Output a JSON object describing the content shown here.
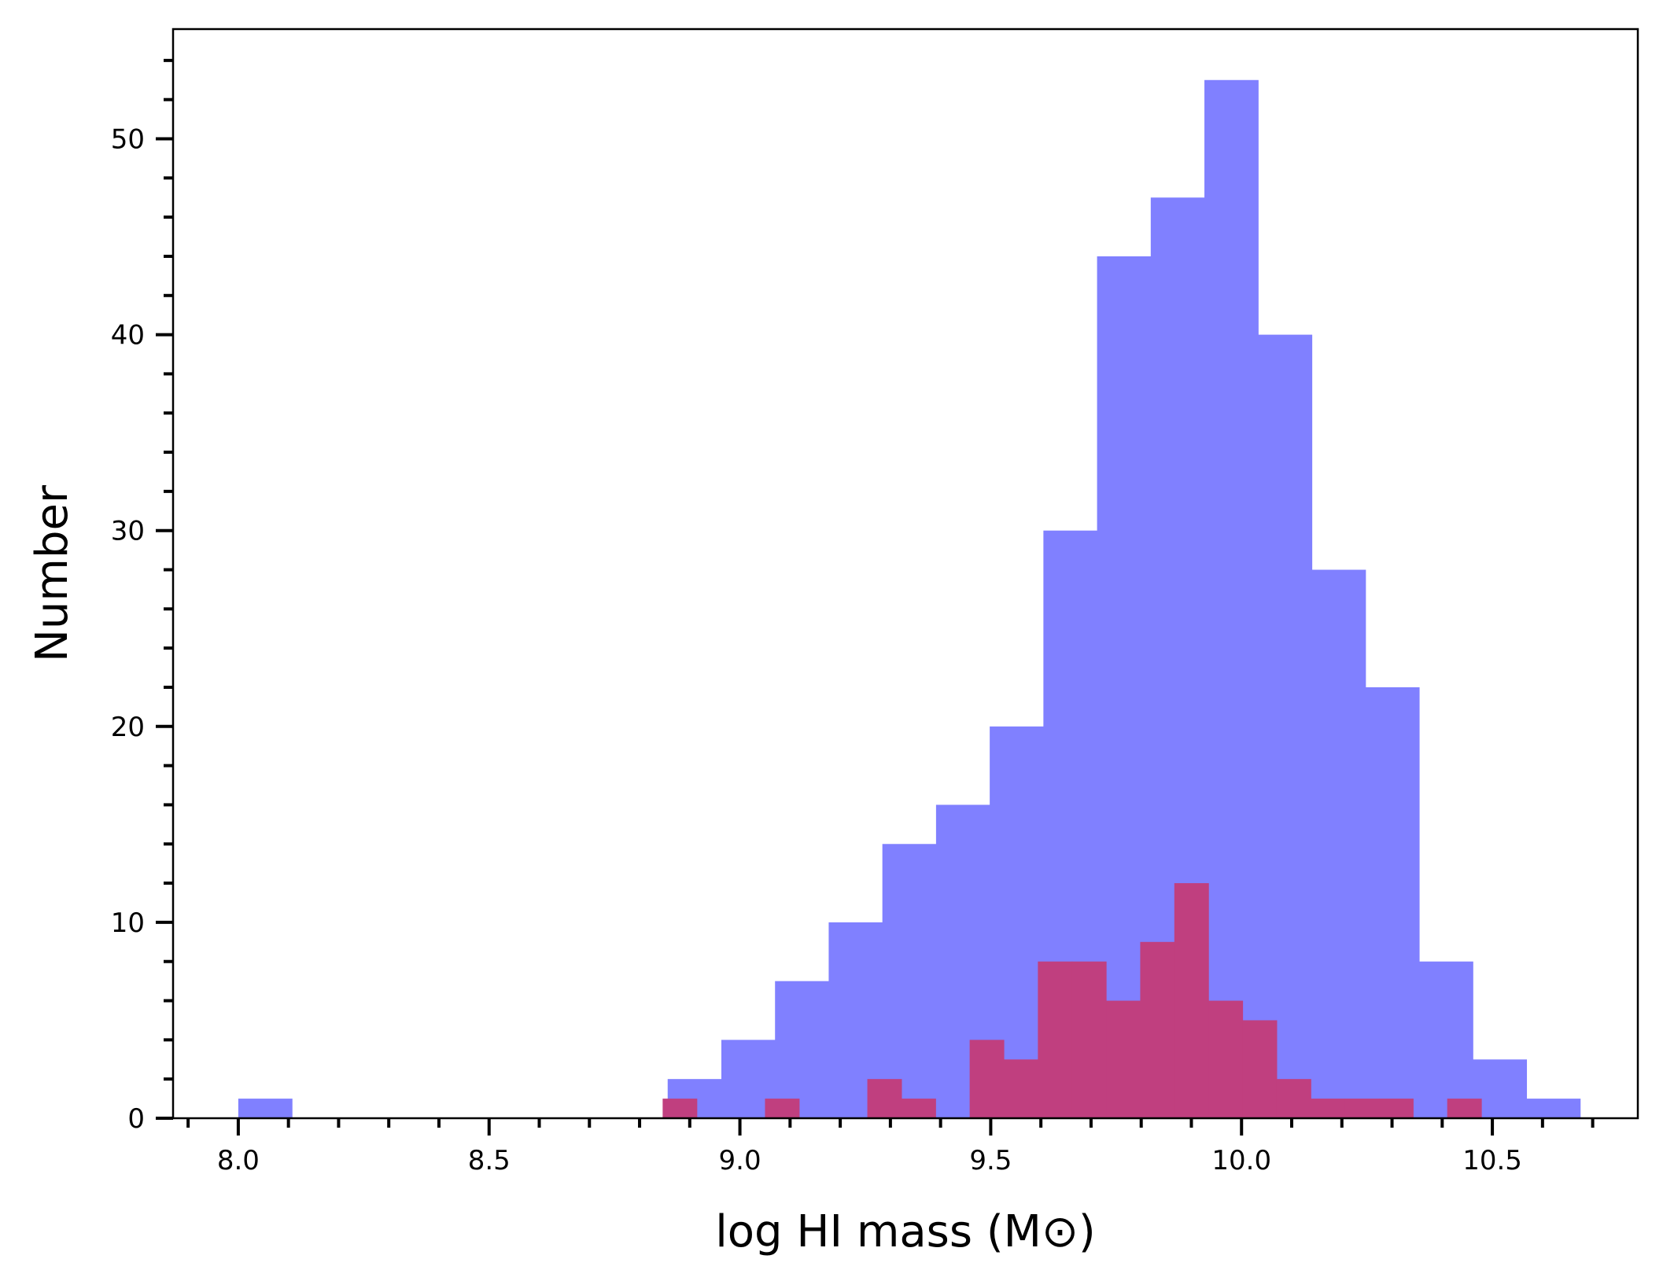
{
  "chart_data": {
    "type": "bar",
    "title": "",
    "xlabel": "log HI mass (M⊙)",
    "ylabel": "Number",
    "xlim": [
      7.87,
      10.79
    ],
    "ylim": [
      0,
      55.6
    ],
    "grid": false,
    "legend": "none",
    "x_ticks": [
      "8.0",
      "8.5",
      "9.0",
      "9.5",
      "10.0",
      "10.5"
    ],
    "x_tick_values": [
      8.0,
      8.5,
      9.0,
      9.5,
      10.0,
      10.5
    ],
    "y_ticks": [
      "0",
      "10",
      "20",
      "30",
      "40",
      "50"
    ],
    "y_tick_values": [
      0,
      10,
      20,
      30,
      40,
      50
    ],
    "series": [
      {
        "color": "#8080ff",
        "bin_edges": [
          8.0,
          8.107,
          8.214,
          8.321,
          8.428,
          8.535,
          8.642,
          8.749,
          8.856,
          8.963,
          9.07,
          9.177,
          9.284,
          9.391,
          9.498,
          9.605,
          9.712,
          9.819,
          9.926,
          10.033,
          10.14,
          10.247,
          10.354,
          10.461,
          10.568,
          10.675
        ],
        "values": [
          1,
          0,
          0,
          0,
          0,
          0,
          0,
          0,
          2,
          4,
          7,
          10,
          14,
          16,
          20,
          30,
          44,
          47,
          53,
          40,
          28,
          22,
          8,
          3,
          1
        ]
      },
      {
        "color": "#c03f7f",
        "bin_edges": [
          8.846,
          8.914,
          8.982,
          9.05,
          9.118,
          9.186,
          9.254,
          9.322,
          9.39,
          9.458,
          9.526,
          9.594,
          9.662,
          9.73,
          9.798,
          9.866,
          9.934,
          10.002,
          10.07,
          10.138,
          10.206,
          10.274,
          10.342,
          10.41,
          10.478
        ],
        "values": [
          1,
          0,
          0,
          1,
          0,
          0,
          2,
          1,
          0,
          4,
          3,
          8,
          8,
          6,
          9,
          12,
          6,
          5,
          2,
          1,
          1,
          1,
          0,
          1
        ]
      }
    ]
  }
}
